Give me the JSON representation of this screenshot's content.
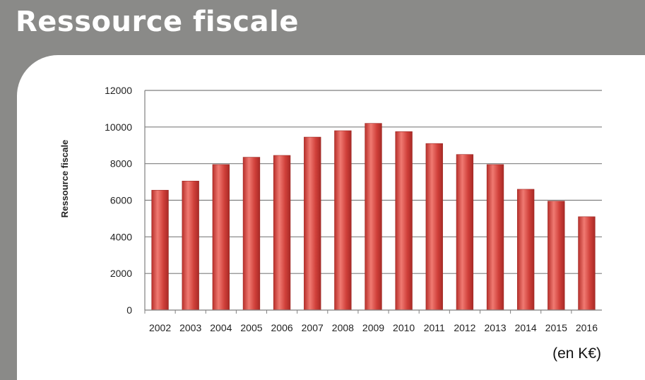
{
  "header": {
    "title": "Ressource fiscale"
  },
  "note": "(en K€)",
  "colors": {
    "bar": "#d0403a",
    "bar_highlight": "#f07a72",
    "grid": "#7f7f7f",
    "header_bg": "#8a8a88"
  },
  "chart_data": {
    "type": "bar",
    "title": "",
    "ylabel": "Ressource fiscale",
    "xlabel": "",
    "ylim": [
      0,
      12000
    ],
    "yticks": [
      0,
      2000,
      4000,
      6000,
      8000,
      10000,
      12000
    ],
    "grid": true,
    "categories": [
      "2002",
      "2003",
      "2004",
      "2005",
      "2006",
      "2007",
      "2008",
      "2009",
      "2010",
      "2011",
      "2012",
      "2013",
      "2014",
      "2015",
      "2016"
    ],
    "values": [
      6550,
      7050,
      7950,
      8350,
      8450,
      9450,
      9800,
      10200,
      9750,
      9100,
      8500,
      7950,
      6600,
      5950,
      5100
    ]
  }
}
